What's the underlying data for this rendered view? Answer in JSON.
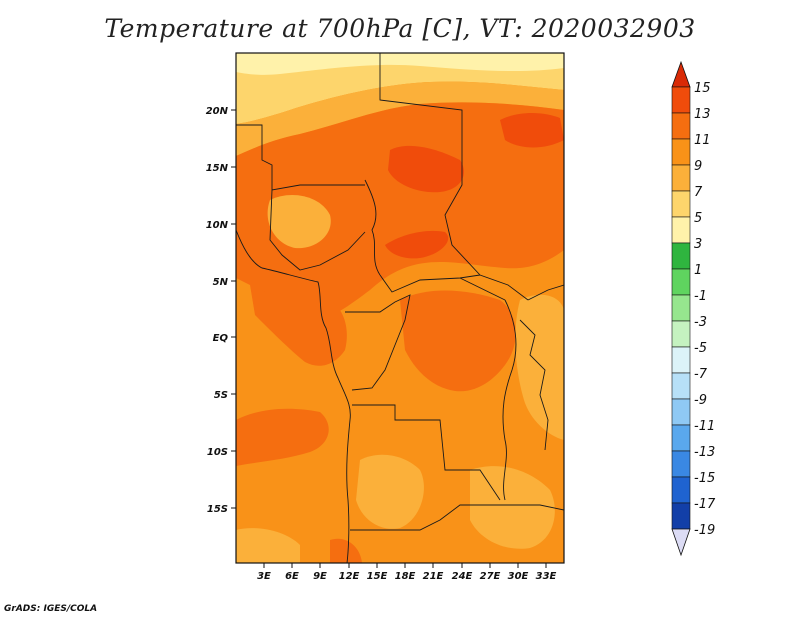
{
  "title": "Temperature at 700hPa [C], VT: 2020032903",
  "credit": "GrADS: IGES/COLA",
  "map": {
    "lat_labels": [
      "20N",
      "15N",
      "10N",
      "5N",
      "EQ",
      "5S",
      "10S",
      "15S"
    ],
    "lon_labels": [
      "3E",
      "6E",
      "9E",
      "12E",
      "15E",
      "18E",
      "21E",
      "24E",
      "27E",
      "30E",
      "33E"
    ]
  },
  "colorbar": {
    "labels": [
      "15",
      "13",
      "11",
      "9",
      "7",
      "5",
      "3",
      "1",
      "-1",
      "-3",
      "-5",
      "-7",
      "-9",
      "-11",
      "-13",
      "-15",
      "-17",
      "-19"
    ],
    "colors": [
      "#d92a06",
      "#f04c0b",
      "#f56e10",
      "#f99218",
      "#fbb03a",
      "#fdd56c",
      "#fff2aa",
      "#2fb53f",
      "#5fd45f",
      "#96e68e",
      "#c5f2c0",
      "#dcf3f8",
      "#b7e0f7",
      "#8fc9f4",
      "#5aa8ed",
      "#3a88e3",
      "#1f63d0",
      "#123fa8",
      "#0a1f78"
    ]
  }
}
